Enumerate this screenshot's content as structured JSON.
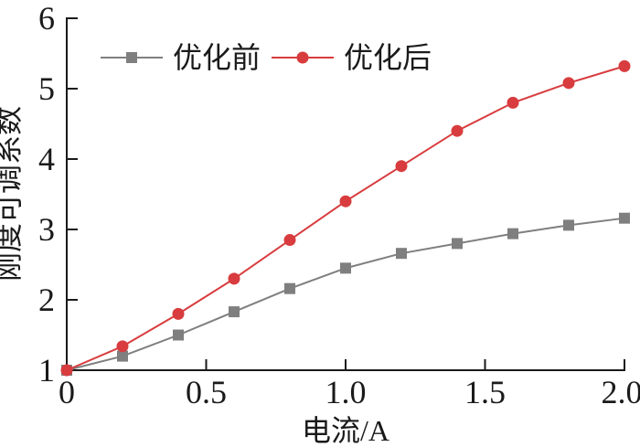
{
  "figure": {
    "background": "#ffffff",
    "axis_color": "#1a1a1a"
  },
  "chart_data": {
    "type": "line",
    "title": "",
    "xlabel": "电流/A",
    "ylabel": "刚度可调系数",
    "xlim": [
      0,
      2.0
    ],
    "ylim": [
      1,
      6
    ],
    "x_ticks": [
      0,
      0.5,
      1.0,
      1.5,
      2.0
    ],
    "x_tick_labels": [
      "0",
      "0.5",
      "1.0",
      "1.5",
      "2.0"
    ],
    "y_ticks": [
      1,
      2,
      3,
      4,
      5,
      6
    ],
    "y_tick_labels": [
      "1",
      "2",
      "3",
      "4",
      "5",
      "6"
    ],
    "grid": false,
    "legend_position": "top-inside",
    "x": [
      0,
      0.2,
      0.4,
      0.6,
      0.8,
      1.0,
      1.2,
      1.4,
      1.6,
      1.8,
      2.0
    ],
    "series": [
      {
        "name": "优化前",
        "key": "before",
        "color": "#7f7f7f",
        "marker": "square",
        "values": [
          1.0,
          1.2,
          1.5,
          1.83,
          2.16,
          2.45,
          2.66,
          2.8,
          2.94,
          3.06,
          3.16
        ]
      },
      {
        "name": "优化后",
        "key": "after",
        "color": "#d83c3e",
        "marker": "circle",
        "values": [
          1.0,
          1.34,
          1.8,
          2.3,
          2.85,
          3.4,
          3.9,
          4.4,
          4.8,
          5.08,
          5.32
        ]
      }
    ]
  }
}
